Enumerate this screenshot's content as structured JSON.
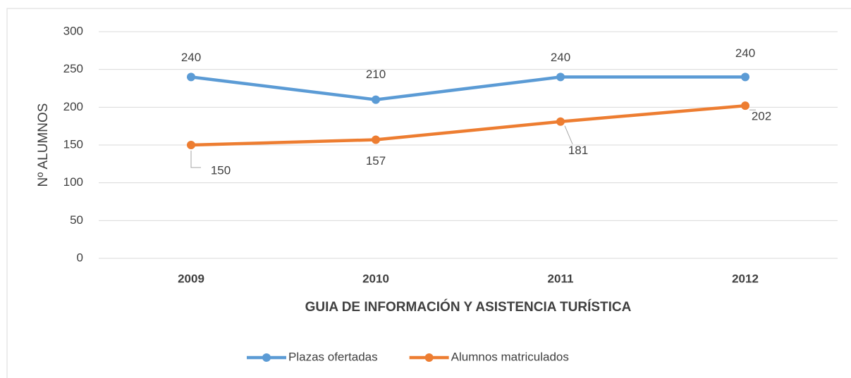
{
  "chart_data": {
    "type": "line",
    "categories": [
      "2009",
      "2010",
      "2011",
      "2012"
    ],
    "series": [
      {
        "name": "Plazas ofertadas",
        "color": "#5b9bd5",
        "values": [
          240,
          210,
          240,
          240
        ]
      },
      {
        "name": "Alumnos matriculados",
        "color": "#ed7d31",
        "values": [
          150,
          157,
          181,
          202
        ]
      }
    ],
    "y_label": "Nº ALUMNOS",
    "x_label": "GUIA DE INFORMACIÓN Y ASISTENCIA TURÍSTICA",
    "ylim": [
      0,
      300
    ],
    "yticks": [
      0,
      50,
      100,
      150,
      200,
      250,
      300
    ],
    "grid": true,
    "legend": "bottom"
  }
}
